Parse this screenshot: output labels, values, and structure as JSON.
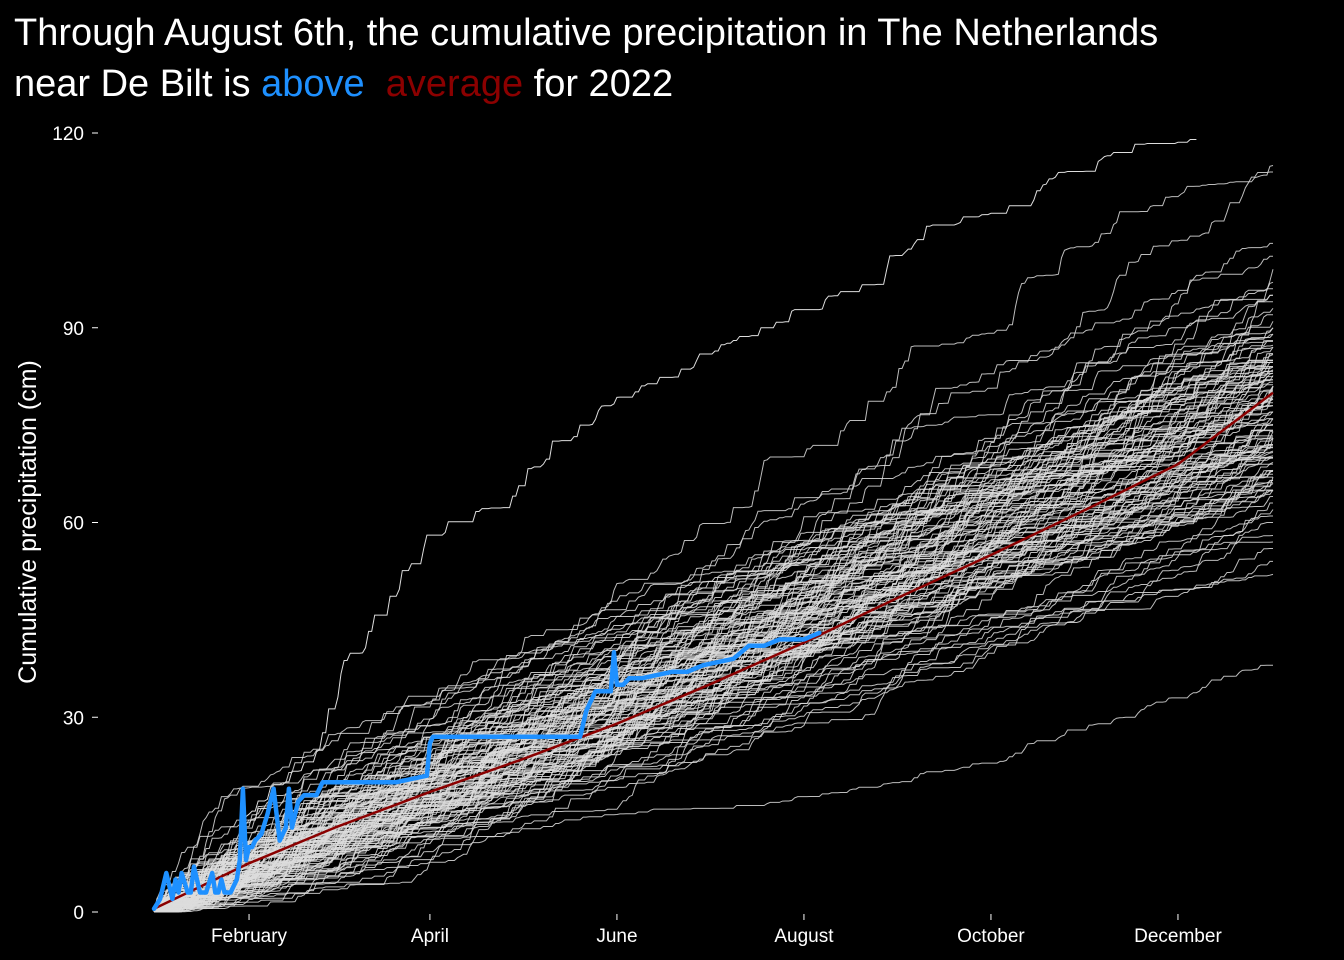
{
  "title": {
    "line1": "Through August 6th, the cumulative precipitation in The Netherlands",
    "line2_prefix": "near De Bilt is ",
    "line2_highlight": "above",
    "line2_gap": "  ",
    "line2_average": "average",
    "line2_suffix": " for 2022"
  },
  "colors": {
    "background": "#000000",
    "history_lines": "#dddddd",
    "current_year": "#1e90ff",
    "average": "#8b0000",
    "text": "#ffffff"
  },
  "chart_data": {
    "type": "line",
    "ylabel": "Cumulative precipitation (cm)",
    "xlabel": "",
    "x_unit": "day of year",
    "xlim": [
      1,
      366
    ],
    "ylim": [
      0,
      120
    ],
    "y_ticks": [
      0,
      30,
      60,
      90,
      120
    ],
    "x_ticks": [
      {
        "day": 32,
        "label": "February"
      },
      {
        "day": 91,
        "label": "April"
      },
      {
        "day": 152,
        "label": "June"
      },
      {
        "day": 213,
        "label": "August"
      },
      {
        "day": 274,
        "label": "October"
      },
      {
        "day": 335,
        "label": "December"
      }
    ],
    "grid": false,
    "legend": "none",
    "historical_years": {
      "description_count": 120,
      "final_totals_cm": [
        38,
        52,
        54,
        56,
        57,
        58,
        60,
        61,
        62,
        63,
        64,
        65,
        65,
        66,
        67,
        68,
        68,
        69,
        70,
        70,
        71,
        72,
        72,
        73,
        73,
        74,
        74,
        75,
        75,
        76,
        76,
        77,
        77,
        78,
        78,
        79,
        79,
        80,
        80,
        81,
        81,
        82,
        82,
        83,
        83,
        84,
        84,
        85,
        85,
        86,
        86,
        87,
        87,
        88,
        88,
        89,
        89,
        90,
        90,
        91,
        92,
        93,
        94,
        95,
        95,
        96,
        97,
        99,
        101,
        103,
        114,
        115
      ],
      "wettest_year_end_cm": 119,
      "wettest_year_end_day": 340
    },
    "series": [
      {
        "name": "2022",
        "x": [
          1,
          3,
          5,
          7,
          8,
          9,
          10,
          12,
          13,
          14,
          16,
          18,
          20,
          21,
          22,
          23,
          24,
          26,
          28,
          29,
          30,
          31,
          32,
          33,
          34,
          36,
          38,
          40,
          42,
          44,
          45,
          46,
          48,
          50,
          52,
          54,
          56,
          60,
          65,
          70,
          80,
          90,
          91,
          92,
          93,
          95,
          100,
          110,
          120,
          130,
          140,
          141,
          142,
          143,
          144,
          145,
          146,
          150,
          151,
          152,
          153,
          154,
          156,
          160,
          170,
          175,
          180,
          190,
          195,
          200,
          205,
          210,
          213,
          218
        ],
        "y": [
          0.5,
          2,
          6,
          2,
          5,
          3,
          6,
          3,
          3,
          7,
          3,
          3,
          6,
          3,
          3,
          5,
          3,
          3,
          5,
          8,
          19,
          8,
          10,
          10,
          11,
          12,
          15,
          19,
          11,
          13,
          19,
          13,
          17,
          18,
          18,
          18,
          20,
          20,
          20,
          20,
          20,
          21,
          26,
          27,
          27,
          27,
          27,
          27,
          27,
          27,
          27,
          29,
          31,
          32,
          33,
          34,
          34,
          34,
          40,
          35,
          35,
          35,
          36,
          36,
          37,
          37,
          38,
          39,
          41,
          41,
          42,
          42,
          42,
          43
        ]
      },
      {
        "name": "",
        "x": [
          1,
          32,
          60,
          91,
          121,
          152,
          182,
          213,
          244,
          274,
          305,
          335,
          366
        ],
        "y": [
          0.5,
          7.5,
          13,
          18.5,
          23.5,
          29,
          35,
          41.5,
          48.5,
          55,
          62,
          69,
          80
        ]
      }
    ]
  }
}
